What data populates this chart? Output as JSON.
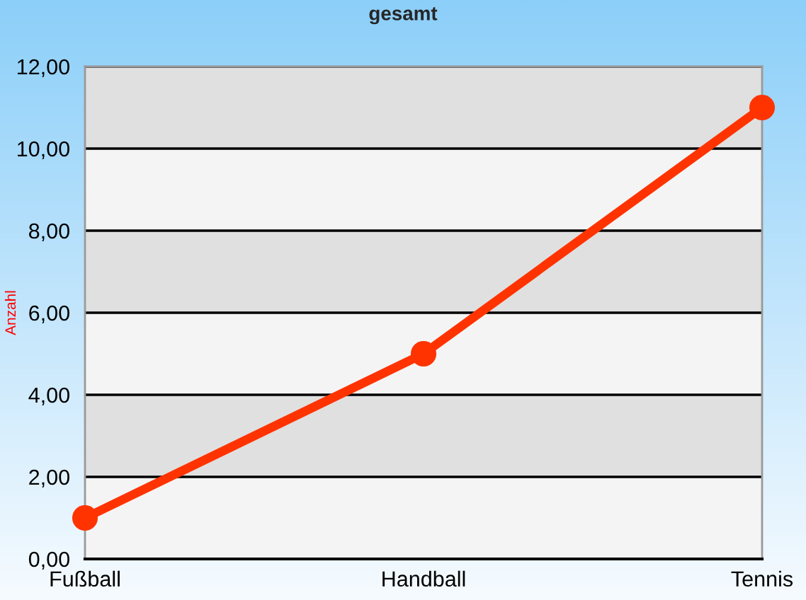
{
  "chart_data": {
    "type": "line",
    "title": "gesamt",
    "ylabel": "Anzahl",
    "categories": [
      "Fußball",
      "Handball",
      "Tennis"
    ],
    "series": [
      {
        "color": "#ff3300",
        "values": [
          1,
          5,
          11
        ]
      }
    ],
    "ylim": [
      0,
      12
    ],
    "yticks": [
      {
        "value": 0,
        "label": "0,00"
      },
      {
        "value": 2,
        "label": "2,00"
      },
      {
        "value": 4,
        "label": "4,00"
      },
      {
        "value": 6,
        "label": "6,00"
      },
      {
        "value": 8,
        "label": "8,00"
      },
      {
        "value": 10,
        "label": "10,00"
      },
      {
        "value": 12,
        "label": "12,00"
      }
    ],
    "grid": "y",
    "legend": false,
    "marker": "circle",
    "line_style": "solid"
  }
}
